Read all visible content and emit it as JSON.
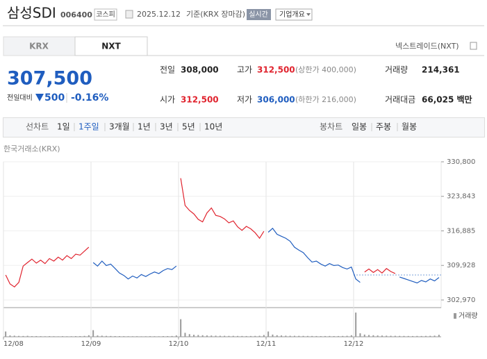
{
  "header": {
    "name": "삼성SDI",
    "code": "006400",
    "market": "코스피",
    "date": "2025.12.12",
    "basis": "기준(KRX 장마감)",
    "realtime": "실시간",
    "company_info": "기업개요"
  },
  "tabs": [
    "KRX",
    "NXT"
  ],
  "nxt_link": "넥스트레이드(NXT)",
  "price": {
    "current": "307,500",
    "change_label": "전일대비",
    "change": "500",
    "change_rate": "-0.16%"
  },
  "stats": [
    {
      "label": "전일",
      "value": "308,000",
      "color": "#222222"
    },
    {
      "label": "고가",
      "value": "312,500",
      "note": "(상한가 400,000)",
      "color": "#e0232e"
    },
    {
      "label": "거래량",
      "value": "214,361",
      "color": "#222222"
    },
    {
      "label": "시가",
      "value": "312,500",
      "color": "#e0232e"
    },
    {
      "label": "저가",
      "value": "306,000",
      "note": "(하한가 216,000)",
      "color": "#1f5dbf"
    },
    {
      "label": "거래대금",
      "value": "66,025 백만",
      "color": "#222222"
    }
  ],
  "periods": {
    "line_label": "선차트",
    "line": [
      "1일",
      "1주일",
      "3개월",
      "1년",
      "3년",
      "5년",
      "10년"
    ],
    "active_line": 1,
    "candle_label": "봉차트",
    "candle": [
      "일봉",
      "주봉",
      "월봉"
    ]
  },
  "chart_data": {
    "type": "line",
    "source": "한국거래소(KRX)",
    "categories": [
      "12/08",
      null,
      null,
      null,
      null,
      null,
      null,
      null,
      null,
      null,
      null,
      null,
      null,
      null,
      null,
      null,
      null,
      null,
      null,
      null,
      "12/09",
      null,
      null,
      null,
      null,
      null,
      null,
      null,
      null,
      null,
      null,
      null,
      null,
      null,
      null,
      null,
      null,
      null,
      null,
      null,
      "12/10",
      null,
      null,
      null,
      null,
      null,
      null,
      null,
      null,
      null,
      null,
      null,
      null,
      null,
      null,
      null,
      null,
      null,
      null,
      null,
      "12/11",
      null,
      null,
      null,
      null,
      null,
      null,
      null,
      null,
      null,
      null,
      null,
      null,
      null,
      null,
      null,
      null,
      null,
      null,
      null,
      "12/12",
      null,
      null,
      null,
      null,
      null,
      null,
      null,
      null,
      null,
      null,
      null,
      null,
      null,
      null,
      null,
      null,
      null,
      null,
      null
    ],
    "series": [
      {
        "color": "#e0232e",
        "values": [
          308000,
          306200,
          305600,
          306500,
          309800,
          310500,
          311200,
          310400,
          311000,
          310300,
          311300,
          310800,
          311600,
          311000,
          311900,
          311300,
          312200,
          312000,
          312800,
          313600,
          null,
          null,
          null,
          null,
          null,
          null,
          null,
          null,
          null,
          null,
          null,
          null,
          null,
          null,
          null,
          null,
          null,
          null,
          null,
          null,
          327500,
          322000,
          321000,
          320300,
          319200,
          318700,
          320500,
          321500,
          320000,
          319800,
          319300,
          318500,
          318900,
          317700,
          317000,
          317800,
          317300,
          316500,
          315400,
          316800,
          null,
          null,
          null,
          null,
          null,
          null,
          null,
          null,
          null,
          null,
          null,
          null,
          null,
          null,
          null,
          null,
          null,
          null,
          null,
          null,
          null,
          null,
          308600,
          309200,
          308500,
          309100,
          308400,
          309300,
          308700,
          308300,
          null,
          null,
          null,
          null,
          null,
          null,
          null,
          null,
          null,
          null
        ]
      },
      {
        "color": "#1f5dbf",
        "values": [
          null,
          null,
          null,
          null,
          null,
          null,
          null,
          null,
          null,
          null,
          null,
          null,
          null,
          null,
          null,
          null,
          null,
          null,
          null,
          null,
          310500,
          309800,
          310800,
          309900,
          310200,
          309300,
          308400,
          307900,
          307200,
          307800,
          307400,
          308100,
          307700,
          308200,
          308600,
          308300,
          308900,
          309300,
          309100,
          309800,
          null,
          null,
          null,
          null,
          null,
          null,
          null,
          null,
          null,
          null,
          null,
          null,
          null,
          null,
          null,
          null,
          null,
          null,
          null,
          null,
          316600,
          317400,
          316200,
          315800,
          315400,
          314800,
          313600,
          313000,
          312500,
          311500,
          310600,
          310800,
          310200,
          309800,
          310300,
          309900,
          310000,
          309500,
          309200,
          309600,
          307200,
          306500,
          null,
          null,
          null,
          null,
          null,
          null,
          null,
          null,
          307600,
          307300,
          307000,
          306700,
          306400,
          306900,
          306600,
          307200,
          306800,
          307500
        ]
      }
    ],
    "reference": 308000,
    "ylim": [
      301430,
      330800
    ],
    "yticks": [
      {
        "value": 330800,
        "label": "330,800"
      },
      {
        "value": 323843,
        "label": "323,843"
      },
      {
        "value": 316885,
        "label": "316,885"
      },
      {
        "value": 309928,
        "label": "309,928"
      },
      {
        "value": 302970,
        "label": "302,970"
      }
    ],
    "grid": true,
    "volume_label": "거래량",
    "volume_color": "#9a9a9a",
    "volume_ylim": [
      0,
      60000
    ],
    "volume": [
      12000,
      3000,
      2500,
      2000,
      1800,
      2200,
      1500,
      1600,
      1400,
      1200,
      1500,
      1300,
      1100,
      1400,
      1200,
      1300,
      1500,
      1600,
      2000,
      3500,
      15000,
      3000,
      2500,
      2000,
      1800,
      1600,
      1500,
      1400,
      1300,
      1200,
      1300,
      1100,
      1200,
      1400,
      1300,
      1200,
      1500,
      1600,
      1800,
      3000,
      40000,
      9000,
      6000,
      4500,
      4000,
      3500,
      3000,
      2800,
      2500,
      2300,
      2200,
      2000,
      2100,
      1900,
      1800,
      1700,
      1800,
      2000,
      2300,
      4000,
      12000,
      5000,
      3500,
      3000,
      2500,
      2300,
      2200,
      2100,
      2000,
      1900,
      1800,
      1700,
      1600,
      1700,
      1800,
      1600,
      1700,
      1900,
      2200,
      3500,
      55000,
      8000,
      5000,
      4000,
      3500,
      3000,
      2800,
      2500,
      2300,
      2200,
      2000,
      1900,
      1800,
      1700,
      1900,
      1800,
      2000,
      2200,
      2600,
      4500
    ]
  }
}
